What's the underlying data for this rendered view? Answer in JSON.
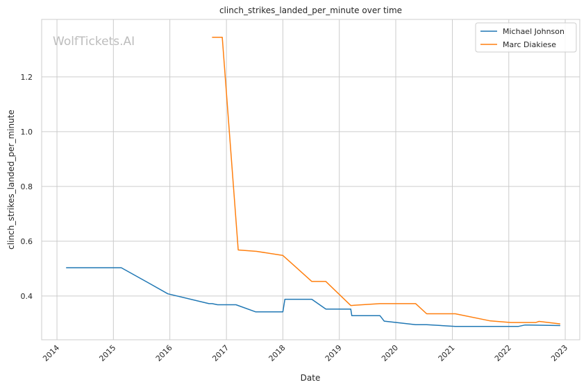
{
  "chart_data": {
    "type": "line",
    "title": "clinch_strikes_landed_per_minute over time",
    "xlabel": "Date",
    "ylabel": "clinch_strikes_landed_per_minute",
    "watermark": "WolfTickets.AI",
    "x_ticks": [
      "2014",
      "2015",
      "2016",
      "2017",
      "2018",
      "2019",
      "2020",
      "2021",
      "2022",
      "2023"
    ],
    "y_ticks": [
      "0.4",
      "0.6",
      "0.8",
      "1.0",
      "1.2"
    ],
    "y_tick_values": [
      0.4,
      0.6,
      0.8,
      1.0,
      1.2
    ],
    "xlim": [
      "2013-09-24",
      "2023-04-05"
    ],
    "ylim": [
      0.24,
      1.41
    ],
    "grid": true,
    "legend_position": "top-right",
    "series": [
      {
        "name": "Michael Johnson",
        "color": "#1f77b4",
        "points": [
          [
            "2014-03-01",
            0.503
          ],
          [
            "2015-02-21",
            0.503
          ],
          [
            "2015-08-15",
            0.448
          ],
          [
            "2015-12-19",
            0.408
          ],
          [
            "2016-09-10",
            0.372
          ],
          [
            "2016-10-01",
            0.372
          ],
          [
            "2016-11-05",
            0.368
          ],
          [
            "2017-03-04",
            0.368
          ],
          [
            "2017-07-08",
            0.342
          ],
          [
            "2018-01-01",
            0.342
          ],
          [
            "2018-01-14",
            0.388
          ],
          [
            "2018-07-07",
            0.388
          ],
          [
            "2018-10-06",
            0.352
          ],
          [
            "2019-03-16",
            0.352
          ],
          [
            "2019-03-23",
            0.328
          ],
          [
            "2019-09-21",
            0.328
          ],
          [
            "2019-10-18",
            0.308
          ],
          [
            "2020-05-09",
            0.295
          ],
          [
            "2020-07-19",
            0.295
          ],
          [
            "2021-01-20",
            0.289
          ],
          [
            "2022-03-05",
            0.289
          ],
          [
            "2022-04-16",
            0.294
          ],
          [
            "2022-11-30",
            0.292
          ]
        ]
      },
      {
        "name": "Marc Diakiese",
        "color": "#ff7f0e",
        "points": [
          [
            "2016-09-30",
            1.345
          ],
          [
            "2016-12-05",
            1.345
          ],
          [
            "2017-03-18",
            0.568
          ],
          [
            "2017-07-15",
            0.563
          ],
          [
            "2018-01-01",
            0.548
          ],
          [
            "2018-07-07",
            0.453
          ],
          [
            "2018-10-06",
            0.453
          ],
          [
            "2019-03-16",
            0.365
          ],
          [
            "2019-09-21",
            0.372
          ],
          [
            "2020-05-09",
            0.372
          ],
          [
            "2020-07-19",
            0.335
          ],
          [
            "2021-01-20",
            0.335
          ],
          [
            "2021-09-04",
            0.309
          ],
          [
            "2022-01-15",
            0.303
          ],
          [
            "2022-06-25",
            0.303
          ],
          [
            "2022-07-16",
            0.307
          ],
          [
            "2022-11-30",
            0.298
          ]
        ]
      }
    ]
  }
}
